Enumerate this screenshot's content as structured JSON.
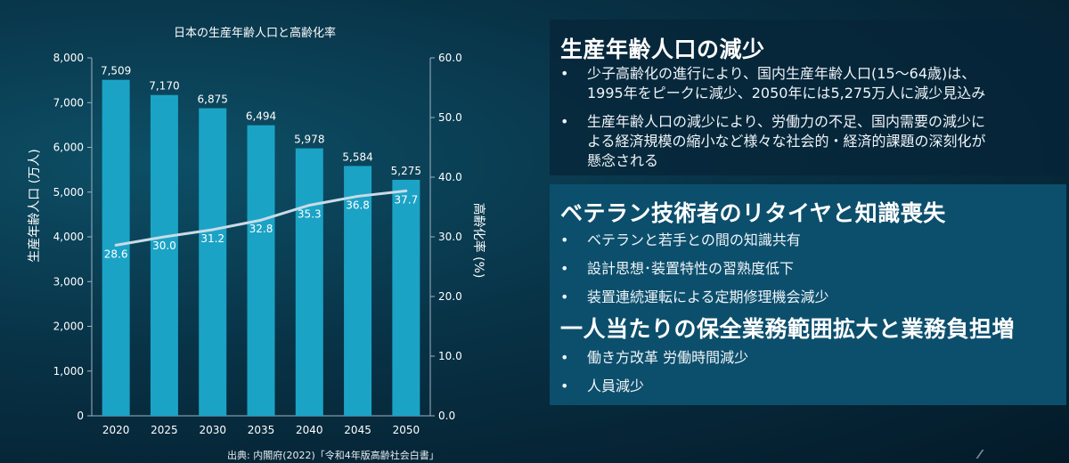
{
  "chart_data": {
    "type": "bar",
    "title": "日本の生産年齢人口と高齢化率",
    "categories": [
      "2020",
      "2025",
      "2030",
      "2035",
      "2040",
      "2045",
      "2050"
    ],
    "series": [
      {
        "name": "生産年齢人口 (万人)",
        "type": "bar",
        "axis": "left",
        "color": "#1ba3c6",
        "values": [
          7509,
          7170,
          6875,
          6494,
          5978,
          5584,
          5275
        ],
        "labels": [
          "7,509",
          "7,170",
          "6,875",
          "6,494",
          "5,978",
          "5,584",
          "5,275"
        ]
      },
      {
        "name": "高齢化率 (%)",
        "type": "line",
        "axis": "right",
        "color": "#c9dbe7",
        "values": [
          28.6,
          30.0,
          31.2,
          32.8,
          35.3,
          36.8,
          37.7
        ],
        "labels": [
          "28.6",
          "30.0",
          "31.2",
          "32.8",
          "35.3",
          "36.8",
          "37.7"
        ]
      }
    ],
    "ylabel": "生産年齢人口 (万人)",
    "y2label": "高齢化率 (%)",
    "ylim": [
      0,
      8000
    ],
    "y2lim": [
      0,
      60
    ],
    "yticks": [
      "0",
      "1,000",
      "2,000",
      "3,000",
      "4,000",
      "5,000",
      "6,000",
      "7,000",
      "8,000"
    ],
    "y2ticks": [
      "0.0",
      "10.0",
      "20.0",
      "30.0",
      "40.0",
      "50.0",
      "60.0"
    ],
    "grid": false,
    "legend": "none",
    "source": "出典: 内閣府(2022)「令和4年版高齢社会白書」"
  },
  "panel1": {
    "heading": "生産年齢人口の減少",
    "bullets": [
      {
        "marker": "•",
        "lines": [
          "少子高齢化の進行により、国内生産年齢人口(15～64歳)は、",
          "1995年をピークに減少、2050年には5,275万人に減少見込み"
        ]
      },
      {
        "marker": "•",
        "lines": [
          "生産年齢人口の減少により、労働力の不足、国内需要の減少に",
          "よる経済規模の縮小など様々な社会的・経済的課題の深刻化が",
          "懸念される"
        ]
      }
    ]
  },
  "panel2": {
    "heading": "ベテラン技術者のリタイヤと知識喪失",
    "bullets": [
      {
        "marker": "•",
        "text": "ベテランと若手との間の知識共有"
      },
      {
        "marker": "•",
        "text": "設計思想･装置特性の習熟度低下"
      },
      {
        "marker": "•",
        "text": "装置連続運転による定期修理機会減少"
      }
    ]
  },
  "panel3": {
    "heading": "一人当たりの保全業務範囲拡大と業務負担増",
    "bullets": [
      {
        "marker": "•",
        "text": "働き方改革 労働時間減少"
      },
      {
        "marker": "•",
        "text": "人員減少"
      }
    ]
  }
}
